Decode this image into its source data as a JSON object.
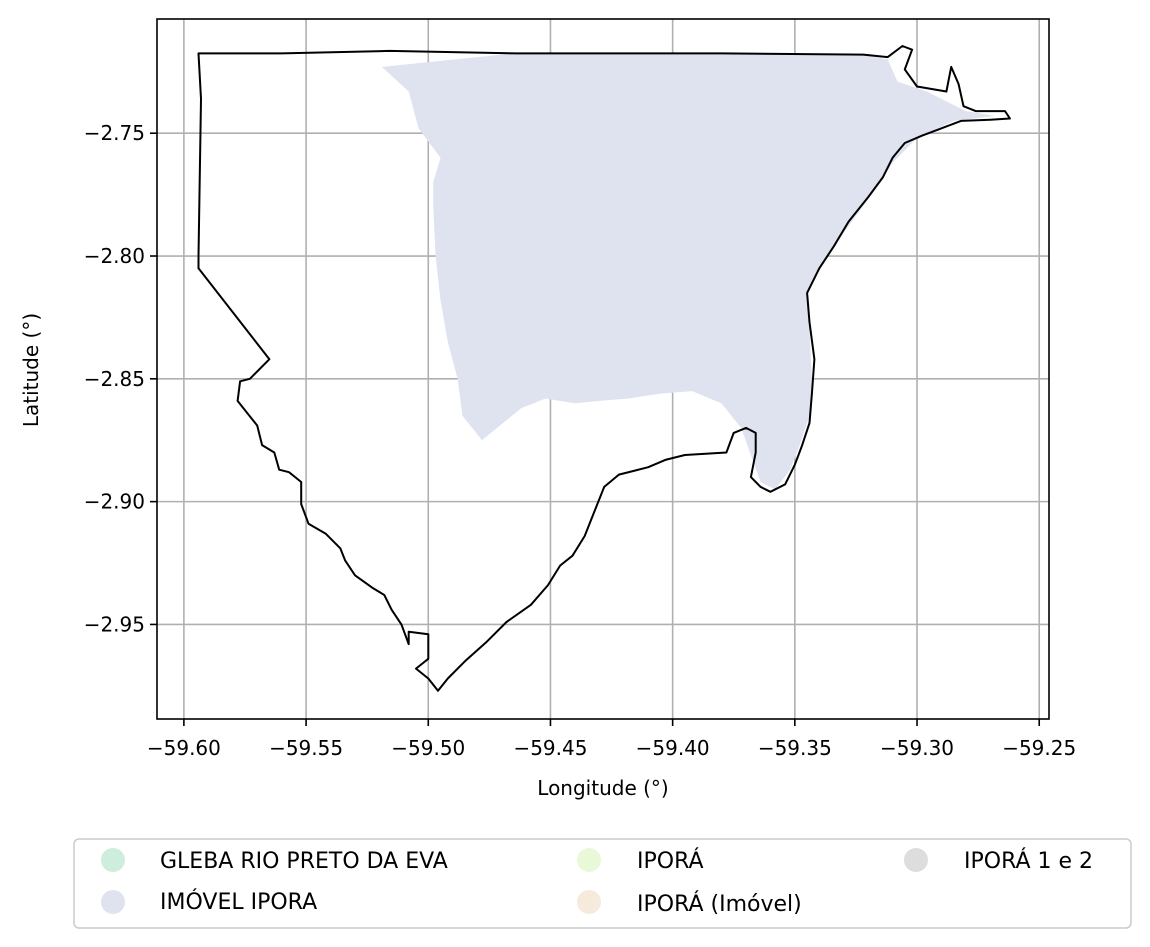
{
  "chart_data": {
    "type": "map",
    "xlabel": "Longitude (°)",
    "ylabel": "Latitude (°)",
    "xlim": [
      -59.611,
      -59.246
    ],
    "ylim": [
      -2.9885,
      -2.7035
    ],
    "xticks": [
      -59.6,
      -59.55,
      -59.5,
      -59.45,
      -59.4,
      -59.35,
      -59.3,
      -59.25
    ],
    "xtick_labels": [
      "−59.60",
      "−59.55",
      "−59.50",
      "−59.45",
      "−59.40",
      "−59.35",
      "−59.30",
      "−59.25"
    ],
    "yticks": [
      -2.75,
      -2.8,
      -2.85,
      -2.9,
      -2.95
    ],
    "ytick_labels": [
      "−2.75",
      "−2.80",
      "−2.85",
      "−2.90",
      "−2.95"
    ],
    "grid": true,
    "legend_position": "bottom",
    "legend": [
      {
        "label": "GLEBA RIO PRETO DA EVA",
        "color": "#cdeedd"
      },
      {
        "label": "IMÓVEL IPORA",
        "color": "#dfe3f0"
      },
      {
        "label": "IPORÁ",
        "color": "#eaf8da"
      },
      {
        "label": "IPORÁ (Imóvel)",
        "color": "#f6eadc"
      },
      {
        "label": "IPORÁ 1 e 2",
        "color": "#dddddd"
      }
    ],
    "boundary_outline": [
      [
        -59.594,
        -2.7175
      ],
      [
        -59.56,
        -2.7175
      ],
      [
        -59.516,
        -2.7165
      ],
      [
        -59.464,
        -2.7175
      ],
      [
        -59.43,
        -2.7175
      ],
      [
        -59.38,
        -2.7175
      ],
      [
        -59.322,
        -2.718
      ],
      [
        -59.312,
        -2.719
      ],
      [
        -59.306,
        -2.7145
      ],
      [
        -59.302,
        -2.716
      ],
      [
        -59.305,
        -2.724
      ],
      [
        -59.3,
        -2.731
      ],
      [
        -59.288,
        -2.733
      ],
      [
        -59.286,
        -2.723
      ],
      [
        -59.283,
        -2.73
      ],
      [
        -59.281,
        -2.739
      ],
      [
        -59.276,
        -2.741
      ],
      [
        -59.264,
        -2.741
      ],
      [
        -59.262,
        -2.744
      ],
      [
        -59.27,
        -2.7445
      ],
      [
        -59.282,
        -2.745
      ],
      [
        -59.29,
        -2.748
      ],
      [
        -59.298,
        -2.751
      ],
      [
        -59.305,
        -2.754
      ],
      [
        -59.31,
        -2.76
      ],
      [
        -59.314,
        -2.768
      ],
      [
        -59.32,
        -2.776
      ],
      [
        -59.328,
        -2.786
      ],
      [
        -59.334,
        -2.796
      ],
      [
        -59.34,
        -2.805
      ],
      [
        -59.345,
        -2.815
      ],
      [
        -59.344,
        -2.827
      ],
      [
        -59.342,
        -2.842
      ],
      [
        -59.343,
        -2.856
      ],
      [
        -59.344,
        -2.868
      ],
      [
        -59.347,
        -2.877
      ],
      [
        -59.35,
        -2.885
      ],
      [
        -59.354,
        -2.893
      ],
      [
        -59.36,
        -2.896
      ],
      [
        -59.364,
        -2.894
      ],
      [
        -59.368,
        -2.89
      ],
      [
        -59.366,
        -2.88
      ],
      [
        -59.366,
        -2.872
      ],
      [
        -59.37,
        -2.87
      ],
      [
        -59.375,
        -2.872
      ],
      [
        -59.378,
        -2.88
      ],
      [
        -59.395,
        -2.881
      ],
      [
        -59.403,
        -2.883
      ],
      [
        -59.41,
        -2.886
      ],
      [
        -59.422,
        -2.889
      ],
      [
        -59.428,
        -2.894
      ],
      [
        -59.432,
        -2.904
      ],
      [
        -59.436,
        -2.914
      ],
      [
        -59.441,
        -2.922
      ],
      [
        -59.446,
        -2.926
      ],
      [
        -59.451,
        -2.934
      ],
      [
        -59.458,
        -2.942
      ],
      [
        -59.468,
        -2.949
      ],
      [
        -59.476,
        -2.957
      ],
      [
        -59.485,
        -2.965
      ],
      [
        -59.492,
        -2.972
      ],
      [
        -59.496,
        -2.977
      ],
      [
        -59.5,
        -2.972
      ],
      [
        -59.505,
        -2.968
      ],
      [
        -59.5,
        -2.964
      ],
      [
        -59.5,
        -2.954
      ],
      [
        -59.508,
        -2.953
      ],
      [
        -59.508,
        -2.958
      ],
      [
        -59.511,
        -2.95
      ],
      [
        -59.515,
        -2.944
      ],
      [
        -59.518,
        -2.938
      ],
      [
        -59.523,
        -2.935
      ],
      [
        -59.53,
        -2.93
      ],
      [
        -59.534,
        -2.924
      ],
      [
        -59.536,
        -2.919
      ],
      [
        -59.542,
        -2.913
      ],
      [
        -59.549,
        -2.909
      ],
      [
        -59.552,
        -2.901
      ],
      [
        -59.552,
        -2.892
      ],
      [
        -59.557,
        -2.888
      ],
      [
        -59.561,
        -2.887
      ],
      [
        -59.563,
        -2.88
      ],
      [
        -59.568,
        -2.877
      ],
      [
        -59.57,
        -2.869
      ],
      [
        -59.574,
        -2.864
      ],
      [
        -59.578,
        -2.859
      ],
      [
        -59.577,
        -2.851
      ],
      [
        -59.573,
        -2.85
      ],
      [
        -59.565,
        -2.842
      ],
      [
        -59.594,
        -2.805
      ],
      [
        -59.594,
        -2.8
      ],
      [
        -59.593,
        -2.736
      ],
      [
        -59.594,
        -2.7175
      ]
    ],
    "shaded_area": [
      [
        -59.519,
        -2.723
      ],
      [
        -59.465,
        -2.7175
      ],
      [
        -59.38,
        -2.7175
      ],
      [
        -59.322,
        -2.718
      ],
      [
        -59.312,
        -2.72
      ],
      [
        -59.308,
        -2.729
      ],
      [
        -59.296,
        -2.733
      ],
      [
        -59.286,
        -2.738
      ],
      [
        -59.28,
        -2.741
      ],
      [
        -59.268,
        -2.743
      ],
      [
        -59.285,
        -2.745
      ],
      [
        -59.3,
        -2.752
      ],
      [
        -59.31,
        -2.762
      ],
      [
        -59.318,
        -2.774
      ],
      [
        -59.326,
        -2.785
      ],
      [
        -59.334,
        -2.796
      ],
      [
        -59.342,
        -2.808
      ],
      [
        -59.345,
        -2.815
      ],
      [
        -59.344,
        -2.83
      ],
      [
        -59.343,
        -2.85
      ],
      [
        -59.344,
        -2.865
      ],
      [
        -59.348,
        -2.877
      ],
      [
        -59.352,
        -2.887
      ],
      [
        -59.358,
        -2.895
      ],
      [
        -59.364,
        -2.892
      ],
      [
        -59.372,
        -2.87
      ],
      [
        -59.38,
        -2.86
      ],
      [
        -59.392,
        -2.855
      ],
      [
        -59.405,
        -2.856
      ],
      [
        -59.418,
        -2.858
      ],
      [
        -59.43,
        -2.859
      ],
      [
        -59.44,
        -2.86
      ],
      [
        -59.452,
        -2.858
      ],
      [
        -59.462,
        -2.862
      ],
      [
        -59.478,
        -2.875
      ],
      [
        -59.486,
        -2.865
      ],
      [
        -59.488,
        -2.85
      ],
      [
        -59.492,
        -2.835
      ],
      [
        -59.495,
        -2.818
      ],
      [
        -59.497,
        -2.8
      ],
      [
        -59.498,
        -2.78
      ],
      [
        -59.498,
        -2.77
      ],
      [
        -59.495,
        -2.76
      ],
      [
        -59.504,
        -2.748
      ],
      [
        -59.508,
        -2.733
      ],
      [
        -59.519,
        -2.723
      ]
    ]
  }
}
